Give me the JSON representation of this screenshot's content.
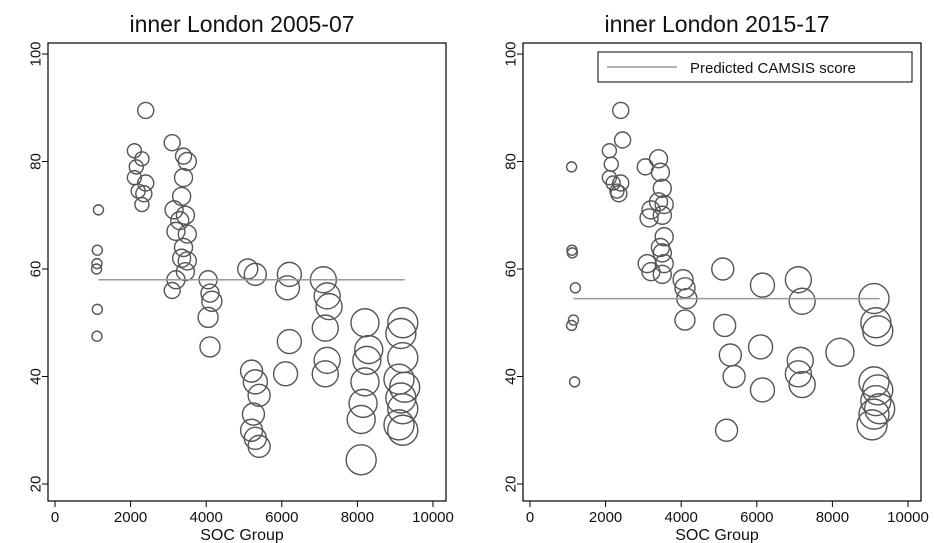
{
  "chart_data": [
    {
      "type": "scatter",
      "title": "inner London 2005-07",
      "xlabel": "SOC Group",
      "ylabel": "",
      "xlim": [
        0,
        10000
      ],
      "ylim": [
        20,
        100
      ],
      "xticks": [
        "0",
        "2000",
        "4000",
        "6000",
        "8000",
        "10000"
      ],
      "yticks": [
        "20",
        "40",
        "60",
        "80",
        "100"
      ],
      "predicted_line": {
        "x": [
          1150,
          9250
        ],
        "y": 58
      },
      "points": [
        [
          1150,
          71,
          5
        ],
        [
          1120,
          63.5,
          5
        ],
        [
          1110,
          61,
          5
        ],
        [
          1100,
          60,
          5
        ],
        [
          1120,
          52.5,
          5
        ],
        [
          1110,
          47.5,
          5
        ],
        [
          2100,
          82,
          7
        ],
        [
          2150,
          79,
          7
        ],
        [
          2100,
          77,
          7
        ],
        [
          2200,
          74.5,
          7
        ],
        [
          2300,
          80.5,
          7
        ],
        [
          2400,
          76,
          8
        ],
        [
          2350,
          74,
          8
        ],
        [
          2300,
          72,
          7
        ],
        [
          2400,
          89.5,
          8
        ],
        [
          3100,
          83.5,
          8
        ],
        [
          3400,
          81,
          8
        ],
        [
          3500,
          80,
          9
        ],
        [
          3400,
          77,
          9
        ],
        [
          3350,
          73.5,
          9
        ],
        [
          3150,
          71,
          9
        ],
        [
          3300,
          69,
          9
        ],
        [
          3200,
          67,
          9
        ],
        [
          3450,
          70,
          9
        ],
        [
          3500,
          66.5,
          9
        ],
        [
          3400,
          64,
          9
        ],
        [
          3500,
          61.5,
          9
        ],
        [
          3450,
          59.5,
          9
        ],
        [
          3100,
          56,
          8
        ],
        [
          3200,
          58,
          9
        ],
        [
          3350,
          62,
          9
        ],
        [
          4050,
          58,
          9
        ],
        [
          4100,
          55.5,
          9
        ],
        [
          4150,
          54,
          10
        ],
        [
          4050,
          51,
          10
        ],
        [
          4100,
          45.5,
          10
        ],
        [
          5100,
          60,
          10
        ],
        [
          5300,
          59,
          11
        ],
        [
          5200,
          41,
          11
        ],
        [
          5300,
          39,
          12
        ],
        [
          5400,
          36.5,
          11
        ],
        [
          5250,
          33,
          11
        ],
        [
          5200,
          30,
          11
        ],
        [
          5300,
          28.5,
          11
        ],
        [
          5400,
          27,
          11
        ],
        [
          6200,
          59,
          12
        ],
        [
          6150,
          56.5,
          12
        ],
        [
          6200,
          46.5,
          12
        ],
        [
          6100,
          40.5,
          12
        ],
        [
          7100,
          58,
          13
        ],
        [
          7200,
          55,
          13
        ],
        [
          7250,
          53,
          13
        ],
        [
          7150,
          49,
          13
        ],
        [
          7200,
          43,
          13
        ],
        [
          7150,
          40.5,
          13
        ],
        [
          8200,
          50,
          14
        ],
        [
          8300,
          45,
          14
        ],
        [
          8250,
          43,
          14
        ],
        [
          8200,
          39,
          14
        ],
        [
          8150,
          35,
          14
        ],
        [
          8100,
          32,
          14
        ],
        [
          8100,
          24.5,
          15
        ],
        [
          9200,
          50,
          15
        ],
        [
          9150,
          48,
          15
        ],
        [
          9200,
          43.5,
          15
        ],
        [
          9100,
          39.5,
          15
        ],
        [
          9250,
          38,
          15
        ],
        [
          9150,
          36,
          15
        ],
        [
          9200,
          34,
          15
        ],
        [
          9100,
          31,
          15
        ],
        [
          9200,
          30,
          15
        ]
      ]
    },
    {
      "type": "scatter",
      "title": "inner London 2015-17",
      "xlabel": "SOC Group",
      "ylabel": "",
      "xlim": [
        0,
        10000
      ],
      "ylim": [
        20,
        100
      ],
      "xticks": [
        "0",
        "2000",
        "4000",
        "6000",
        "8000",
        "10000"
      ],
      "yticks": [
        "20",
        "40",
        "60",
        "80",
        "100"
      ],
      "legend": {
        "label": "Predicted CAMSIS score",
        "position": "top-right"
      },
      "predicted_line": {
        "x": [
          1150,
          9250
        ],
        "y": 54.5
      },
      "points": [
        [
          1100,
          79,
          5
        ],
        [
          1110,
          63.5,
          5
        ],
        [
          1120,
          63,
          5
        ],
        [
          1200,
          56.5,
          5
        ],
        [
          1150,
          50.5,
          5
        ],
        [
          1100,
          49.5,
          5
        ],
        [
          1180,
          39,
          5
        ],
        [
          2100,
          82,
          7
        ],
        [
          2150,
          79.5,
          7
        ],
        [
          2100,
          77,
          7
        ],
        [
          2200,
          76,
          7
        ],
        [
          2300,
          74.5,
          7
        ],
        [
          2400,
          76,
          8
        ],
        [
          2350,
          74,
          8
        ],
        [
          2400,
          89.5,
          8
        ],
        [
          2450,
          84,
          8
        ],
        [
          3050,
          79,
          8
        ],
        [
          3400,
          80.5,
          9
        ],
        [
          3450,
          78,
          9
        ],
        [
          3500,
          75,
          9
        ],
        [
          3400,
          72.5,
          9
        ],
        [
          3550,
          72,
          9
        ],
        [
          3200,
          71,
          9
        ],
        [
          3150,
          69.5,
          9
        ],
        [
          3500,
          70,
          9
        ],
        [
          3550,
          66,
          9
        ],
        [
          3450,
          64,
          9
        ],
        [
          3500,
          63,
          9
        ],
        [
          3550,
          61,
          9
        ],
        [
          3500,
          59,
          9
        ],
        [
          3100,
          61,
          9
        ],
        [
          3200,
          59.5,
          9
        ],
        [
          4050,
          58,
          10
        ],
        [
          4100,
          56.5,
          10
        ],
        [
          4150,
          54.5,
          10
        ],
        [
          4100,
          50.5,
          10
        ],
        [
          5100,
          60,
          11
        ],
        [
          5150,
          49.5,
          11
        ],
        [
          5300,
          44,
          11
        ],
        [
          5400,
          40,
          11
        ],
        [
          5200,
          30,
          11
        ],
        [
          6150,
          57,
          12
        ],
        [
          6100,
          45.5,
          12
        ],
        [
          6150,
          37.5,
          12
        ],
        [
          7100,
          58,
          13
        ],
        [
          7200,
          54,
          13
        ],
        [
          7150,
          43,
          13
        ],
        [
          7100,
          40.5,
          13
        ],
        [
          7200,
          38.5,
          13
        ],
        [
          8200,
          44.5,
          14
        ],
        [
          9100,
          54.5,
          15
        ],
        [
          9150,
          50,
          15
        ],
        [
          9200,
          48.5,
          15
        ],
        [
          9100,
          39,
          15
        ],
        [
          9200,
          37.5,
          15
        ],
        [
          9150,
          35.5,
          15
        ],
        [
          9250,
          34,
          15
        ],
        [
          9100,
          33,
          15
        ],
        [
          9050,
          31,
          15
        ]
      ]
    }
  ]
}
